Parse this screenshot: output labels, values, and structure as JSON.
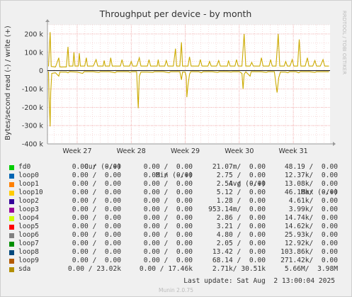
{
  "chart_data": {
    "type": "line",
    "title": "Throughput per device - by month",
    "ylabel": "Bytes/second read (-) / write (+)",
    "side_label": "RRDTOOL / TOBI OETIKER",
    "ylim": [
      -400000,
      250000
    ],
    "y_ticks": [
      {
        "value": 200000,
        "label": "200 k"
      },
      {
        "value": 100000,
        "label": "100 k"
      },
      {
        "value": 0,
        "label": "0"
      },
      {
        "value": -100000,
        "label": "-100 k"
      },
      {
        "value": -200000,
        "label": "-200 k"
      },
      {
        "value": -300000,
        "label": "-300 k"
      },
      {
        "value": -400000,
        "label": "-400 k"
      }
    ],
    "x_ticks": [
      {
        "value": 27,
        "label": "Week 27"
      },
      {
        "value": 28,
        "label": "Week 28"
      },
      {
        "value": 29,
        "label": "Week 29"
      },
      {
        "value": 30,
        "label": "Week 30"
      },
      {
        "value": 31,
        "label": "Week 31"
      }
    ],
    "xlim": [
      26.45,
      31.68
    ],
    "grid": true,
    "series": [
      {
        "name": "sda",
        "color": "#ccaa00",
        "write": [
          [
            26.47,
            23000
          ],
          [
            26.5,
            210000
          ],
          [
            26.52,
            23000
          ],
          [
            26.6,
            20000
          ],
          [
            26.66,
            70000
          ],
          [
            26.68,
            20000
          ],
          [
            26.8,
            20000
          ],
          [
            26.83,
            130000
          ],
          [
            26.85,
            25000
          ],
          [
            26.92,
            25000
          ],
          [
            26.94,
            100000
          ],
          [
            26.96,
            25000
          ],
          [
            27.02,
            25000
          ],
          [
            27.04,
            95000
          ],
          [
            27.06,
            25000
          ],
          [
            27.14,
            25000
          ],
          [
            27.17,
            70000
          ],
          [
            27.19,
            25000
          ],
          [
            27.3,
            25000
          ],
          [
            27.35,
            60000
          ],
          [
            27.38,
            25000
          ],
          [
            27.48,
            25000
          ],
          [
            27.5,
            55000
          ],
          [
            27.52,
            25000
          ],
          [
            27.6,
            25000
          ],
          [
            27.62,
            70000
          ],
          [
            27.65,
            25000
          ],
          [
            27.8,
            25000
          ],
          [
            27.83,
            60000
          ],
          [
            27.86,
            25000
          ],
          [
            27.97,
            25000
          ],
          [
            28.0,
            50000
          ],
          [
            28.03,
            25000
          ],
          [
            28.1,
            25000
          ],
          [
            28.15,
            70000
          ],
          [
            28.18,
            25000
          ],
          [
            28.3,
            25000
          ],
          [
            28.33,
            60000
          ],
          [
            28.36,
            25000
          ],
          [
            28.48,
            25000
          ],
          [
            28.5,
            60000
          ],
          [
            28.52,
            25000
          ],
          [
            28.62,
            25000
          ],
          [
            28.65,
            55000
          ],
          [
            28.68,
            25000
          ],
          [
            28.78,
            25000
          ],
          [
            28.82,
            120000
          ],
          [
            28.84,
            25000
          ],
          [
            28.9,
            25000
          ],
          [
            28.93,
            155000
          ],
          [
            28.95,
            25000
          ],
          [
            29.05,
            25000
          ],
          [
            29.08,
            75000
          ],
          [
            29.11,
            25000
          ],
          [
            29.25,
            25000
          ],
          [
            29.28,
            60000
          ],
          [
            29.31,
            25000
          ],
          [
            29.42,
            25000
          ],
          [
            29.45,
            50000
          ],
          [
            29.48,
            25000
          ],
          [
            29.58,
            25000
          ],
          [
            29.62,
            55000
          ],
          [
            29.65,
            25000
          ],
          [
            29.78,
            25000
          ],
          [
            29.8,
            55000
          ],
          [
            29.83,
            25000
          ],
          [
            29.92,
            25000
          ],
          [
            29.95,
            60000
          ],
          [
            29.98,
            25000
          ],
          [
            30.05,
            25000
          ],
          [
            30.09,
            200000
          ],
          [
            30.12,
            25000
          ],
          [
            30.2,
            25000
          ],
          [
            30.23,
            45000
          ],
          [
            30.26,
            25000
          ],
          [
            30.38,
            25000
          ],
          [
            30.41,
            70000
          ],
          [
            30.44,
            25000
          ],
          [
            30.55,
            25000
          ],
          [
            30.58,
            60000
          ],
          [
            30.61,
            25000
          ],
          [
            30.68,
            25000
          ],
          [
            30.72,
            200000
          ],
          [
            30.75,
            25000
          ],
          [
            30.83,
            25000
          ],
          [
            30.86,
            50000
          ],
          [
            30.89,
            25000
          ],
          [
            30.94,
            25000
          ],
          [
            30.98,
            60000
          ],
          [
            31.01,
            25000
          ],
          [
            31.08,
            25000
          ],
          [
            31.11,
            170000
          ],
          [
            31.14,
            25000
          ],
          [
            31.22,
            25000
          ],
          [
            31.26,
            70000
          ],
          [
            31.29,
            25000
          ],
          [
            31.36,
            25000
          ],
          [
            31.4,
            55000
          ],
          [
            31.43,
            25000
          ],
          [
            31.5,
            25000
          ],
          [
            31.55,
            60000
          ],
          [
            31.58,
            25000
          ],
          [
            31.66,
            25000
          ]
        ],
        "read": [
          [
            26.47,
            -5000
          ],
          [
            26.48,
            -150000
          ],
          [
            26.5,
            -305000
          ],
          [
            26.51,
            -120000
          ],
          [
            26.53,
            -15000
          ],
          [
            26.6,
            -12000
          ],
          [
            26.66,
            -30000
          ],
          [
            26.68,
            -8000
          ],
          [
            26.8,
            -8000
          ],
          [
            26.83,
            -12000
          ],
          [
            26.86,
            -6000
          ],
          [
            27.0,
            -8000
          ],
          [
            27.1,
            -15000
          ],
          [
            27.13,
            -6000
          ],
          [
            27.3,
            -6000
          ],
          [
            27.4,
            -10000
          ],
          [
            27.43,
            -6000
          ],
          [
            27.6,
            -6000
          ],
          [
            27.7,
            -12000
          ],
          [
            27.73,
            -6000
          ],
          [
            27.95,
            -6000
          ],
          [
            27.98,
            -10000
          ],
          [
            28.01,
            -6000
          ],
          [
            28.1,
            -6000
          ],
          [
            28.13,
            -205000
          ],
          [
            28.15,
            -30000
          ],
          [
            28.18,
            -8000
          ],
          [
            28.3,
            -8000
          ],
          [
            28.4,
            -10000
          ],
          [
            28.43,
            -6000
          ],
          [
            28.6,
            -6000
          ],
          [
            28.7,
            -12000
          ],
          [
            28.73,
            -6000
          ],
          [
            28.9,
            -6000
          ],
          [
            28.93,
            -50000
          ],
          [
            28.95,
            -8000
          ],
          [
            29.0,
            -8000
          ],
          [
            29.02,
            -35000
          ],
          [
            29.03,
            -145000
          ],
          [
            29.05,
            -80000
          ],
          [
            29.08,
            -20000
          ],
          [
            29.1,
            -6000
          ],
          [
            29.25,
            -6000
          ],
          [
            29.3,
            -12000
          ],
          [
            29.33,
            -6000
          ],
          [
            29.5,
            -6000
          ],
          [
            29.6,
            -10000
          ],
          [
            29.63,
            -6000
          ],
          [
            29.78,
            -6000
          ],
          [
            29.85,
            -8000
          ],
          [
            29.88,
            -6000
          ],
          [
            30.0,
            -6000
          ],
          [
            30.05,
            -15000
          ],
          [
            30.07,
            -100000
          ],
          [
            30.09,
            -20000
          ],
          [
            30.12,
            -6000
          ],
          [
            30.2,
            -30000
          ],
          [
            30.22,
            -6000
          ],
          [
            30.4,
            -6000
          ],
          [
            30.5,
            -10000
          ],
          [
            30.53,
            -6000
          ],
          [
            30.65,
            -6000
          ],
          [
            30.7,
            -120000
          ],
          [
            30.73,
            -40000
          ],
          [
            30.76,
            -8000
          ],
          [
            30.85,
            -8000
          ],
          [
            30.9,
            -12000
          ],
          [
            30.93,
            -6000
          ],
          [
            31.05,
            -6000
          ],
          [
            31.1,
            -12000
          ],
          [
            31.13,
            -6000
          ],
          [
            31.3,
            -6000
          ],
          [
            31.4,
            -10000
          ],
          [
            31.43,
            -6000
          ],
          [
            31.66,
            -6000
          ]
        ]
      }
    ]
  },
  "legend": {
    "headers": {
      "cur": "Cur (-/+)",
      "min": "Min (-/+)",
      "avg": "Avg (-/+)",
      "max": "Max (-/+)"
    },
    "rows": [
      {
        "name": "fd0",
        "color": "#00cc00",
        "cur": "0.00 /  0.00",
        "min": "0.00 /  0.00",
        "avg": "21.07m/  0.00",
        "max": "48.19 /  0.00"
      },
      {
        "name": "loop0",
        "color": "#0066b3",
        "cur": "0.00 /  0.00",
        "min": "0.00 /  0.00",
        "avg": "2.75 /  0.00",
        "max": "12.37k/  0.00"
      },
      {
        "name": "loop1",
        "color": "#ff8000",
        "cur": "0.00 /  0.00",
        "min": "0.00 /  0.00",
        "avg": "2.54 /  0.00",
        "max": "13.08k/  0.00"
      },
      {
        "name": "loop10",
        "color": "#ffcc00",
        "cur": "0.00 /  0.00",
        "min": "0.00 /  0.00",
        "avg": "5.12 /  0.00",
        "max": "46.10k/  0.00"
      },
      {
        "name": "loop2",
        "color": "#330099",
        "cur": "0.00 /  0.00",
        "min": "0.00 /  0.00",
        "avg": "1.28 /  0.00",
        "max": "4.61k/  0.00"
      },
      {
        "name": "loop3",
        "color": "#990099",
        "cur": "0.00 /  0.00",
        "min": "0.00 /  0.00",
        "avg": "953.14m/  0.00",
        "max": "3.99k/  0.00"
      },
      {
        "name": "loop4",
        "color": "#ccff00",
        "cur": "0.00 /  0.00",
        "min": "0.00 /  0.00",
        "avg": "2.86 /  0.00",
        "max": "14.74k/  0.00"
      },
      {
        "name": "loop5",
        "color": "#ff0000",
        "cur": "0.00 /  0.00",
        "min": "0.00 /  0.00",
        "avg": "3.21 /  0.00",
        "max": "14.62k/  0.00"
      },
      {
        "name": "loop6",
        "color": "#808080",
        "cur": "0.00 /  0.00",
        "min": "0.00 /  0.00",
        "avg": "4.80 /  0.00",
        "max": "25.93k/  0.00"
      },
      {
        "name": "loop7",
        "color": "#008f00",
        "cur": "0.00 /  0.00",
        "min": "0.00 /  0.00",
        "avg": "2.05 /  0.00",
        "max": "12.92k/  0.00"
      },
      {
        "name": "loop8",
        "color": "#00487d",
        "cur": "0.00 /  0.00",
        "min": "0.00 /  0.00",
        "avg": "13.42 /  0.00",
        "max": "103.86k/  0.00"
      },
      {
        "name": "loop9",
        "color": "#b35a00",
        "cur": "0.00 /  0.00",
        "min": "0.00 /  0.00",
        "avg": "68.14 /  0.00",
        "max": "271.42k/  0.00"
      },
      {
        "name": "sda",
        "color": "#b38f00",
        "cur": "0.00 / 23.02k",
        "min": "0.00 / 17.46k",
        "avg": "2.71k/ 30.51k",
        "max": "5.66M/  3.98M"
      }
    ]
  },
  "footer": {
    "last_update": "Last update: Sat Aug  2 13:00:04 2025",
    "version": "Munin 2.0.75"
  }
}
